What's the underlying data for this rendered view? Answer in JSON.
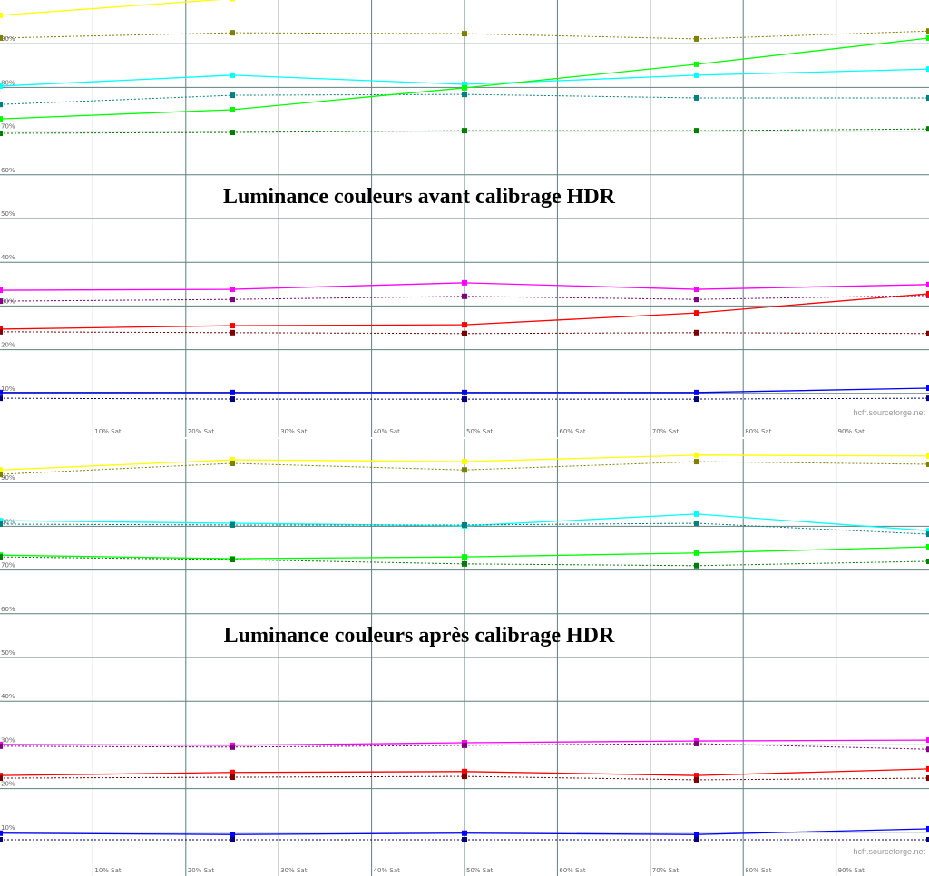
{
  "chart_data": [
    {
      "type": "line",
      "title": "Luminance couleurs avant calibrage HDR",
      "watermark": "hcfr.sourceforge.net",
      "x": [
        0,
        25,
        50,
        75,
        100
      ],
      "xlim": [
        0,
        100
      ],
      "ylim": [
        0,
        100
      ],
      "grid": true,
      "xticks": [
        {
          "value": 10,
          "label": "10% Sat"
        },
        {
          "value": 20,
          "label": "20% Sat"
        },
        {
          "value": 30,
          "label": "30% Sat"
        },
        {
          "value": 40,
          "label": "40% Sat"
        },
        {
          "value": 50,
          "label": "50% Sat"
        },
        {
          "value": 60,
          "label": "60% Sat"
        },
        {
          "value": 70,
          "label": "70% Sat"
        },
        {
          "value": 80,
          "label": "80% Sat"
        },
        {
          "value": 90,
          "label": "90% Sat"
        }
      ],
      "yticks": [
        {
          "value": 10,
          "label": "10%"
        },
        {
          "value": 20,
          "label": "20%"
        },
        {
          "value": 30,
          "label": "30%"
        },
        {
          "value": 40,
          "label": "40%"
        },
        {
          "value": 50,
          "label": "50%"
        },
        {
          "value": 60,
          "label": "60%"
        },
        {
          "value": 70,
          "label": "70%"
        },
        {
          "value": 80,
          "label": "80%"
        },
        {
          "value": 90,
          "label": "90%"
        }
      ],
      "series": [
        {
          "color": "#ffff00",
          "dashed": false,
          "values": [
            96.5,
            100.3,
            null,
            null,
            null
          ]
        },
        {
          "color": "#808000",
          "dashed": true,
          "values": [
            91.3,
            92.5,
            92.3,
            91.1,
            92.9
          ]
        },
        {
          "color": "#00ffff",
          "dashed": false,
          "values": [
            80.3,
            82.8,
            80.7,
            82.8,
            84.2
          ]
        },
        {
          "color": "#008080",
          "dashed": true,
          "values": [
            76.1,
            78.2,
            78.4,
            77.6,
            77.6
          ]
        },
        {
          "color": "#00ff00",
          "dashed": false,
          "values": [
            72.8,
            74.9,
            79.9,
            85.3,
            91.3
          ]
        },
        {
          "color": "#008000",
          "dashed": true,
          "values": [
            69.5,
            69.7,
            70.1,
            70.1,
            70.5
          ]
        },
        {
          "color": "#ff00ff",
          "dashed": false,
          "values": [
            33.6,
            33.8,
            35.3,
            33.8,
            34.9
          ]
        },
        {
          "color": "#800080",
          "dashed": true,
          "values": [
            31.1,
            31.5,
            32.2,
            31.5,
            32.4
          ]
        },
        {
          "color": "#ff0000",
          "dashed": false,
          "values": [
            24.7,
            25.5,
            25.7,
            28.4,
            32.8
          ]
        },
        {
          "color": "#800000",
          "dashed": true,
          "values": [
            24.1,
            23.9,
            23.7,
            23.9,
            23.7
          ]
        },
        {
          "color": "#0000ff",
          "dashed": false,
          "values": [
            10.2,
            10.2,
            10.2,
            10.2,
            11.2
          ]
        },
        {
          "color": "#000080",
          "dashed": true,
          "values": [
            8.9,
            8.7,
            8.7,
            8.7,
            8.9
          ]
        }
      ]
    },
    {
      "type": "line",
      "title": "Luminance couleurs après calibrage HDR",
      "watermark": "hcfr.sourceforge.net",
      "x": [
        0,
        25,
        50,
        75,
        100
      ],
      "xlim": [
        0,
        100
      ],
      "ylim": [
        0,
        100
      ],
      "grid": true,
      "xticks": [
        {
          "value": 10,
          "label": "10% Sat"
        },
        {
          "value": 20,
          "label": "20% Sat"
        },
        {
          "value": 30,
          "label": "30% Sat"
        },
        {
          "value": 40,
          "label": "40% Sat"
        },
        {
          "value": 50,
          "label": "50% Sat"
        },
        {
          "value": 60,
          "label": "60% Sat"
        },
        {
          "value": 70,
          "label": "70% Sat"
        },
        {
          "value": 80,
          "label": "80% Sat"
        },
        {
          "value": 90,
          "label": "90% Sat"
        }
      ],
      "yticks": [
        {
          "value": 10,
          "label": "10%"
        },
        {
          "value": 20,
          "label": "20%"
        },
        {
          "value": 30,
          "label": "30%"
        },
        {
          "value": 40,
          "label": "40%"
        },
        {
          "value": 50,
          "label": "50%"
        },
        {
          "value": 60,
          "label": "60%"
        },
        {
          "value": 70,
          "label": "70%"
        },
        {
          "value": 80,
          "label": "80%"
        },
        {
          "value": 90,
          "label": "90%"
        }
      ],
      "series": [
        {
          "color": "#ffff00",
          "dashed": false,
          "values": [
            92.9,
            95.2,
            94.8,
            96.3,
            96.1
          ]
        },
        {
          "color": "#808000",
          "dashed": true,
          "values": [
            91.9,
            94.4,
            92.9,
            94.8,
            94.2
          ]
        },
        {
          "color": "#00ffff",
          "dashed": false,
          "values": [
            81.3,
            80.7,
            80.1,
            82.8,
            79.0
          ]
        },
        {
          "color": "#008080",
          "dashed": true,
          "values": [
            80.5,
            80.3,
            80.3,
            80.7,
            78.2
          ]
        },
        {
          "color": "#00ff00",
          "dashed": false,
          "values": [
            73.4,
            72.6,
            73.0,
            73.9,
            75.3
          ]
        },
        {
          "color": "#008000",
          "dashed": true,
          "values": [
            73.0,
            72.4,
            71.4,
            71.0,
            72.0
          ]
        },
        {
          "color": "#ff00ff",
          "dashed": false,
          "values": [
            30.1,
            29.9,
            30.5,
            30.9,
            31.1
          ]
        },
        {
          "color": "#800080",
          "dashed": true,
          "values": [
            29.7,
            29.5,
            29.9,
            30.3,
            29.0
          ]
        },
        {
          "color": "#ff0000",
          "dashed": false,
          "values": [
            23.0,
            23.7,
            23.9,
            23.0,
            24.5
          ]
        },
        {
          "color": "#800000",
          "dashed": true,
          "values": [
            22.4,
            22.6,
            22.8,
            22.0,
            22.4
          ]
        },
        {
          "color": "#0000ff",
          "dashed": false,
          "values": [
            9.8,
            9.5,
            9.8,
            9.5,
            10.8
          ]
        },
        {
          "color": "#000080",
          "dashed": true,
          "values": [
            8.3,
            8.3,
            8.3,
            8.3,
            8.3
          ]
        }
      ]
    }
  ]
}
